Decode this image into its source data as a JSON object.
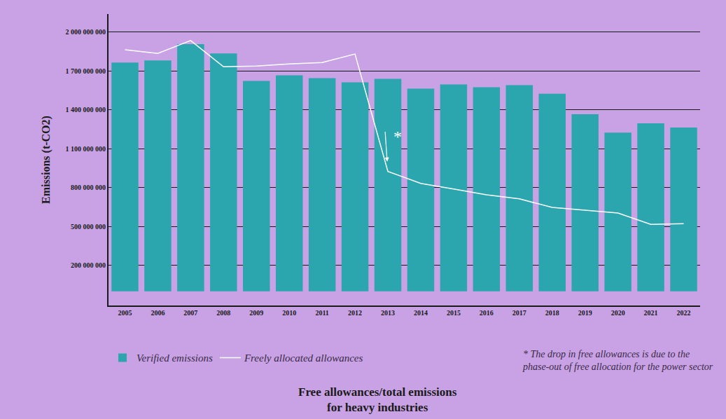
{
  "chart_data": {
    "type": "bar",
    "title": "Free allowances/total emissions\nfor heavy industries",
    "y_label": "Emissions (t-CO2)",
    "categories": [
      "2005",
      "2006",
      "2007",
      "2008",
      "2009",
      "2010",
      "2011",
      "2012",
      "2013",
      "2014",
      "2015",
      "2016",
      "2017",
      "2018",
      "2019",
      "2020",
      "2021",
      "2022"
    ],
    "series": [
      {
        "name": "Verified emissions",
        "type": "bar",
        "color": "#2ba6ae",
        "values": [
          1765000000,
          1782000000,
          1907000000,
          1836000000,
          1624000000,
          1667000000,
          1645000000,
          1613000000,
          1640000000,
          1564000000,
          1596000000,
          1575000000,
          1591000000,
          1525000000,
          1367000000,
          1225000000,
          1296000000,
          1264000000
        ]
      },
      {
        "name": "Freely allocated allowances",
        "type": "line",
        "color": "#ffffff",
        "values": [
          1864000000,
          1836000000,
          1935000000,
          1733000000,
          1738000000,
          1755000000,
          1765000000,
          1831000000,
          925000000,
          833000000,
          789000000,
          745000000,
          713000000,
          647000000,
          625000000,
          604000000,
          516000000,
          522000000
        ]
      }
    ],
    "ylim": [
      -110000000,
      2140000000
    ],
    "yticks": [
      {
        "value": 200000000,
        "label": "200 000 000"
      },
      {
        "value": 500000000,
        "label": "500 000 000"
      },
      {
        "value": 800000000,
        "label": "800 000 000"
      },
      {
        "value": 1100000000,
        "label": "1 100 000 000"
      },
      {
        "value": 1400000000,
        "label": "1 400 000 000"
      },
      {
        "value": 1700000000,
        "label": "1 700 000 000"
      },
      {
        "value": 2000000000,
        "label": "2 000 000 000"
      }
    ],
    "grid": true,
    "legend": "bottom left",
    "annotations": [
      {
        "text": "*",
        "category": "2013"
      }
    ],
    "footnote": "* The drop in free allowances is due to the\nphase-out of free allocation for the power sector"
  }
}
